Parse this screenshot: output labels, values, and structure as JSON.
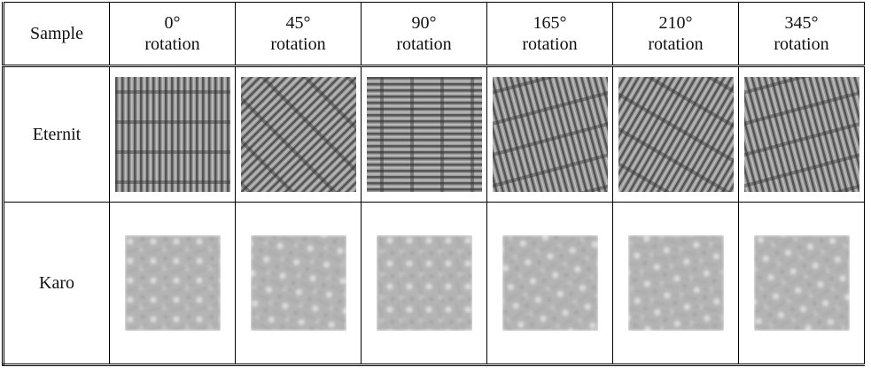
{
  "header": {
    "first": "Sample",
    "rotations": [
      [
        "0°",
        "rotation"
      ],
      [
        "45°",
        "rotation"
      ],
      [
        "90°",
        "rotation"
      ],
      [
        "165°",
        "rotation"
      ],
      [
        "210°",
        "rotation"
      ],
      [
        "345°",
        "rotation"
      ]
    ]
  },
  "rows": [
    {
      "sample": "Eternit"
    },
    {
      "sample": "Karo"
    }
  ]
}
